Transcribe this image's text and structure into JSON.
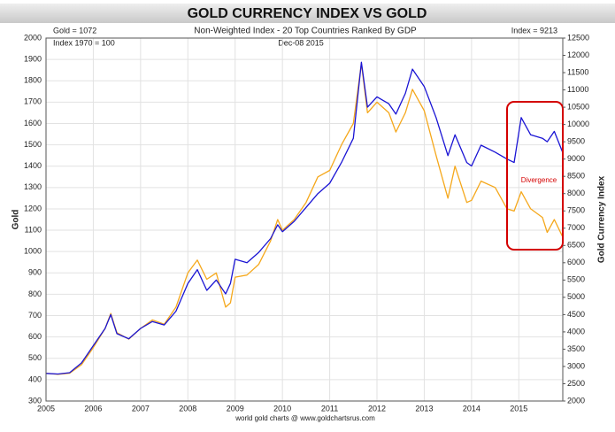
{
  "chart_data": {
    "type": "line",
    "title": "GOLD CURRENCY INDEX VS GOLD",
    "subtitle": "Non-Weighted Index - 20 Top Countries Ranked By GDP",
    "source": "world gold charts @ www.goldchartsrus.com",
    "ylabel": "Gold",
    "y2label": "Gold Currency Index",
    "annotations": [
      "Gold = 1072",
      "Index = 9213",
      "Index 1970 = 100",
      "Dec-08 2015",
      "Divergence"
    ],
    "x": [
      2005.0,
      2005.25,
      2005.5,
      2005.75,
      2006.0,
      2006.25,
      2006.37,
      2006.5,
      2006.75,
      2007.0,
      2007.25,
      2007.5,
      2007.75,
      2008.0,
      2008.2,
      2008.4,
      2008.6,
      2008.8,
      2008.9,
      2009.0,
      2009.25,
      2009.5,
      2009.75,
      2009.9,
      2010.0,
      2010.25,
      2010.5,
      2010.75,
      2011.0,
      2011.25,
      2011.5,
      2011.67,
      2011.8,
      2012.0,
      2012.25,
      2012.4,
      2012.6,
      2012.75,
      2012.9,
      2013.0,
      2013.25,
      2013.5,
      2013.65,
      2013.9,
      2014.0,
      2014.2,
      2014.5,
      2014.75,
      2014.9,
      2015.05,
      2015.25,
      2015.5,
      2015.6,
      2015.75,
      2015.92
    ],
    "series": [
      {
        "name": "Gold",
        "color": "#f5a81c",
        "axis": "y",
        "values": [
          430,
          425,
          430,
          470,
          550,
          640,
          710,
          620,
          590,
          640,
          680,
          660,
          740,
          900,
          960,
          870,
          900,
          740,
          760,
          880,
          890,
          940,
          1050,
          1150,
          1100,
          1150,
          1230,
          1350,
          1380,
          1500,
          1600,
          1880,
          1650,
          1700,
          1650,
          1560,
          1650,
          1760,
          1700,
          1660,
          1450,
          1250,
          1400,
          1230,
          1240,
          1330,
          1300,
          1200,
          1190,
          1280,
          1200,
          1160,
          1090,
          1150,
          1072
        ]
      },
      {
        "name": "Gold Currency Index",
        "color": "#1a14d4",
        "axis": "y2",
        "values": [
          2800,
          2780,
          2820,
          3100,
          3600,
          4100,
          4500,
          3950,
          3800,
          4100,
          4300,
          4200,
          4600,
          5400,
          5800,
          5200,
          5500,
          5100,
          5400,
          6100,
          6000,
          6300,
          6700,
          7100,
          6900,
          7200,
          7600,
          8000,
          8300,
          8900,
          9600,
          11800,
          10500,
          10800,
          10600,
          10300,
          10900,
          11600,
          11300,
          11100,
          10200,
          9100,
          9700,
          8900,
          8800,
          9400,
          9200,
          9000,
          8900,
          10200,
          9700,
          9600,
          9500,
          9800,
          9213
        ]
      }
    ],
    "xlim": [
      2005,
      2015.93
    ],
    "xticks": [
      2005,
      2006,
      2007,
      2008,
      2009,
      2010,
      2011,
      2012,
      2013,
      2014,
      2015
    ],
    "ylim": [
      300,
      2000
    ],
    "yticks": [
      300,
      400,
      500,
      600,
      700,
      800,
      900,
      1000,
      1100,
      1200,
      1300,
      1400,
      1500,
      1600,
      1700,
      1800,
      1900,
      2000
    ],
    "y2lim": [
      2000,
      12500
    ],
    "y2ticks": [
      2000,
      2500,
      3000,
      3500,
      4000,
      4500,
      5000,
      5500,
      6000,
      6500,
      7000,
      7500,
      8000,
      8500,
      9000,
      9500,
      10000,
      10500,
      11000,
      11500,
      12000,
      12500
    ],
    "grid": true
  }
}
